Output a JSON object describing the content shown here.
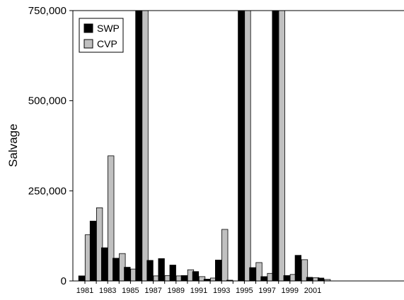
{
  "chart_data": {
    "type": "bar",
    "title": "",
    "xlabel": "",
    "ylabel": "Salvage",
    "ylim": [
      0,
      750000
    ],
    "y_ticks": [
      "0",
      "250,000",
      "500,000",
      "750,000"
    ],
    "y_tick_values": [
      0,
      250000,
      500000,
      750000
    ],
    "categories": [
      "1981",
      "1982",
      "1983",
      "1984",
      "1985",
      "1986",
      "1987",
      "1988",
      "1989",
      "1990",
      "1991",
      "1992",
      "1993",
      "1994",
      "1995",
      "1996",
      "1997",
      "1998",
      "1999",
      "2000",
      "2001",
      "2002"
    ],
    "x_tick_labels": [
      "1981",
      "1983",
      "1985",
      "1987",
      "1989",
      "1991",
      "1993",
      "1995",
      "1997",
      "1999",
      "2001"
    ],
    "grid": false,
    "legend_position": "top-left",
    "series": [
      {
        "name": "SWP",
        "color": "#000000",
        "values": [
          14000,
          166000,
          92000,
          63000,
          38000,
          750000,
          57000,
          62000,
          44000,
          15000,
          26000,
          5000,
          58000,
          2000,
          750000,
          37000,
          12000,
          750000,
          15000,
          71000,
          10000,
          8000
        ]
      },
      {
        "name": "CVP",
        "color": "#c0c0c0",
        "values": [
          128000,
          203000,
          347000,
          76000,
          33000,
          750000,
          14000,
          15000,
          14000,
          31000,
          12000,
          8000,
          143000,
          0,
          750000,
          51000,
          21000,
          750000,
          18000,
          59000,
          9000,
          4000
        ]
      }
    ]
  }
}
